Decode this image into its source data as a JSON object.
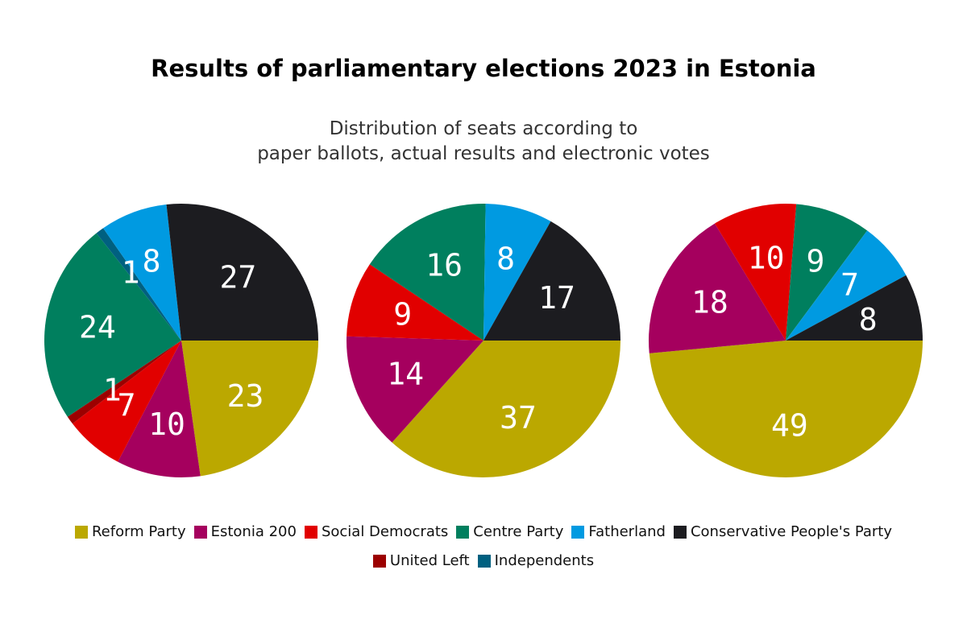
{
  "title": "Results of parliamentary elections 2023 in Estonia",
  "subtitle_line1": "Distribution of seats according to",
  "subtitle_line2": "paper ballots, actual results and electronic votes",
  "chart_data": {
    "type": "pie",
    "parties": [
      {
        "name": "Reform Party",
        "color": "#bba800"
      },
      {
        "name": "Estonia 200",
        "color": "#a5005e"
      },
      {
        "name": "Social Democrats",
        "color": "#e10000"
      },
      {
        "name": "Centre Party",
        "color": "#007f5e"
      },
      {
        "name": "Fatherland",
        "color": "#009ae1"
      },
      {
        "name": "Conservative People's Party",
        "color": "#1c1c20"
      },
      {
        "name": "United Left",
        "color": "#9c0000"
      },
      {
        "name": "Independents",
        "color": "#006080"
      }
    ],
    "pies": [
      {
        "slices": [
          {
            "party": "Reform Party",
            "value": 23
          },
          {
            "party": "Estonia 200",
            "value": 10
          },
          {
            "party": "Social Democrats",
            "value": 7
          },
          {
            "party": "United Left",
            "value": 1
          },
          {
            "party": "Centre Party",
            "value": 24
          },
          {
            "party": "Independents",
            "value": 1
          },
          {
            "party": "Fatherland",
            "value": 8
          },
          {
            "party": "Conservative People's Party",
            "value": 27
          }
        ]
      },
      {
        "slices": [
          {
            "party": "Reform Party",
            "value": 37
          },
          {
            "party": "Estonia 200",
            "value": 14
          },
          {
            "party": "Social Democrats",
            "value": 9
          },
          {
            "party": "Centre Party",
            "value": 16
          },
          {
            "party": "Fatherland",
            "value": 8
          },
          {
            "party": "Conservative People's Party",
            "value": 17
          }
        ]
      },
      {
        "slices": [
          {
            "party": "Reform Party",
            "value": 49
          },
          {
            "party": "Estonia 200",
            "value": 18
          },
          {
            "party": "Social Democrats",
            "value": 10
          },
          {
            "party": "Centre Party",
            "value": 9
          },
          {
            "party": "Fatherland",
            "value": 7
          },
          {
            "party": "Conservative People's Party",
            "value": 8
          }
        ]
      }
    ]
  }
}
